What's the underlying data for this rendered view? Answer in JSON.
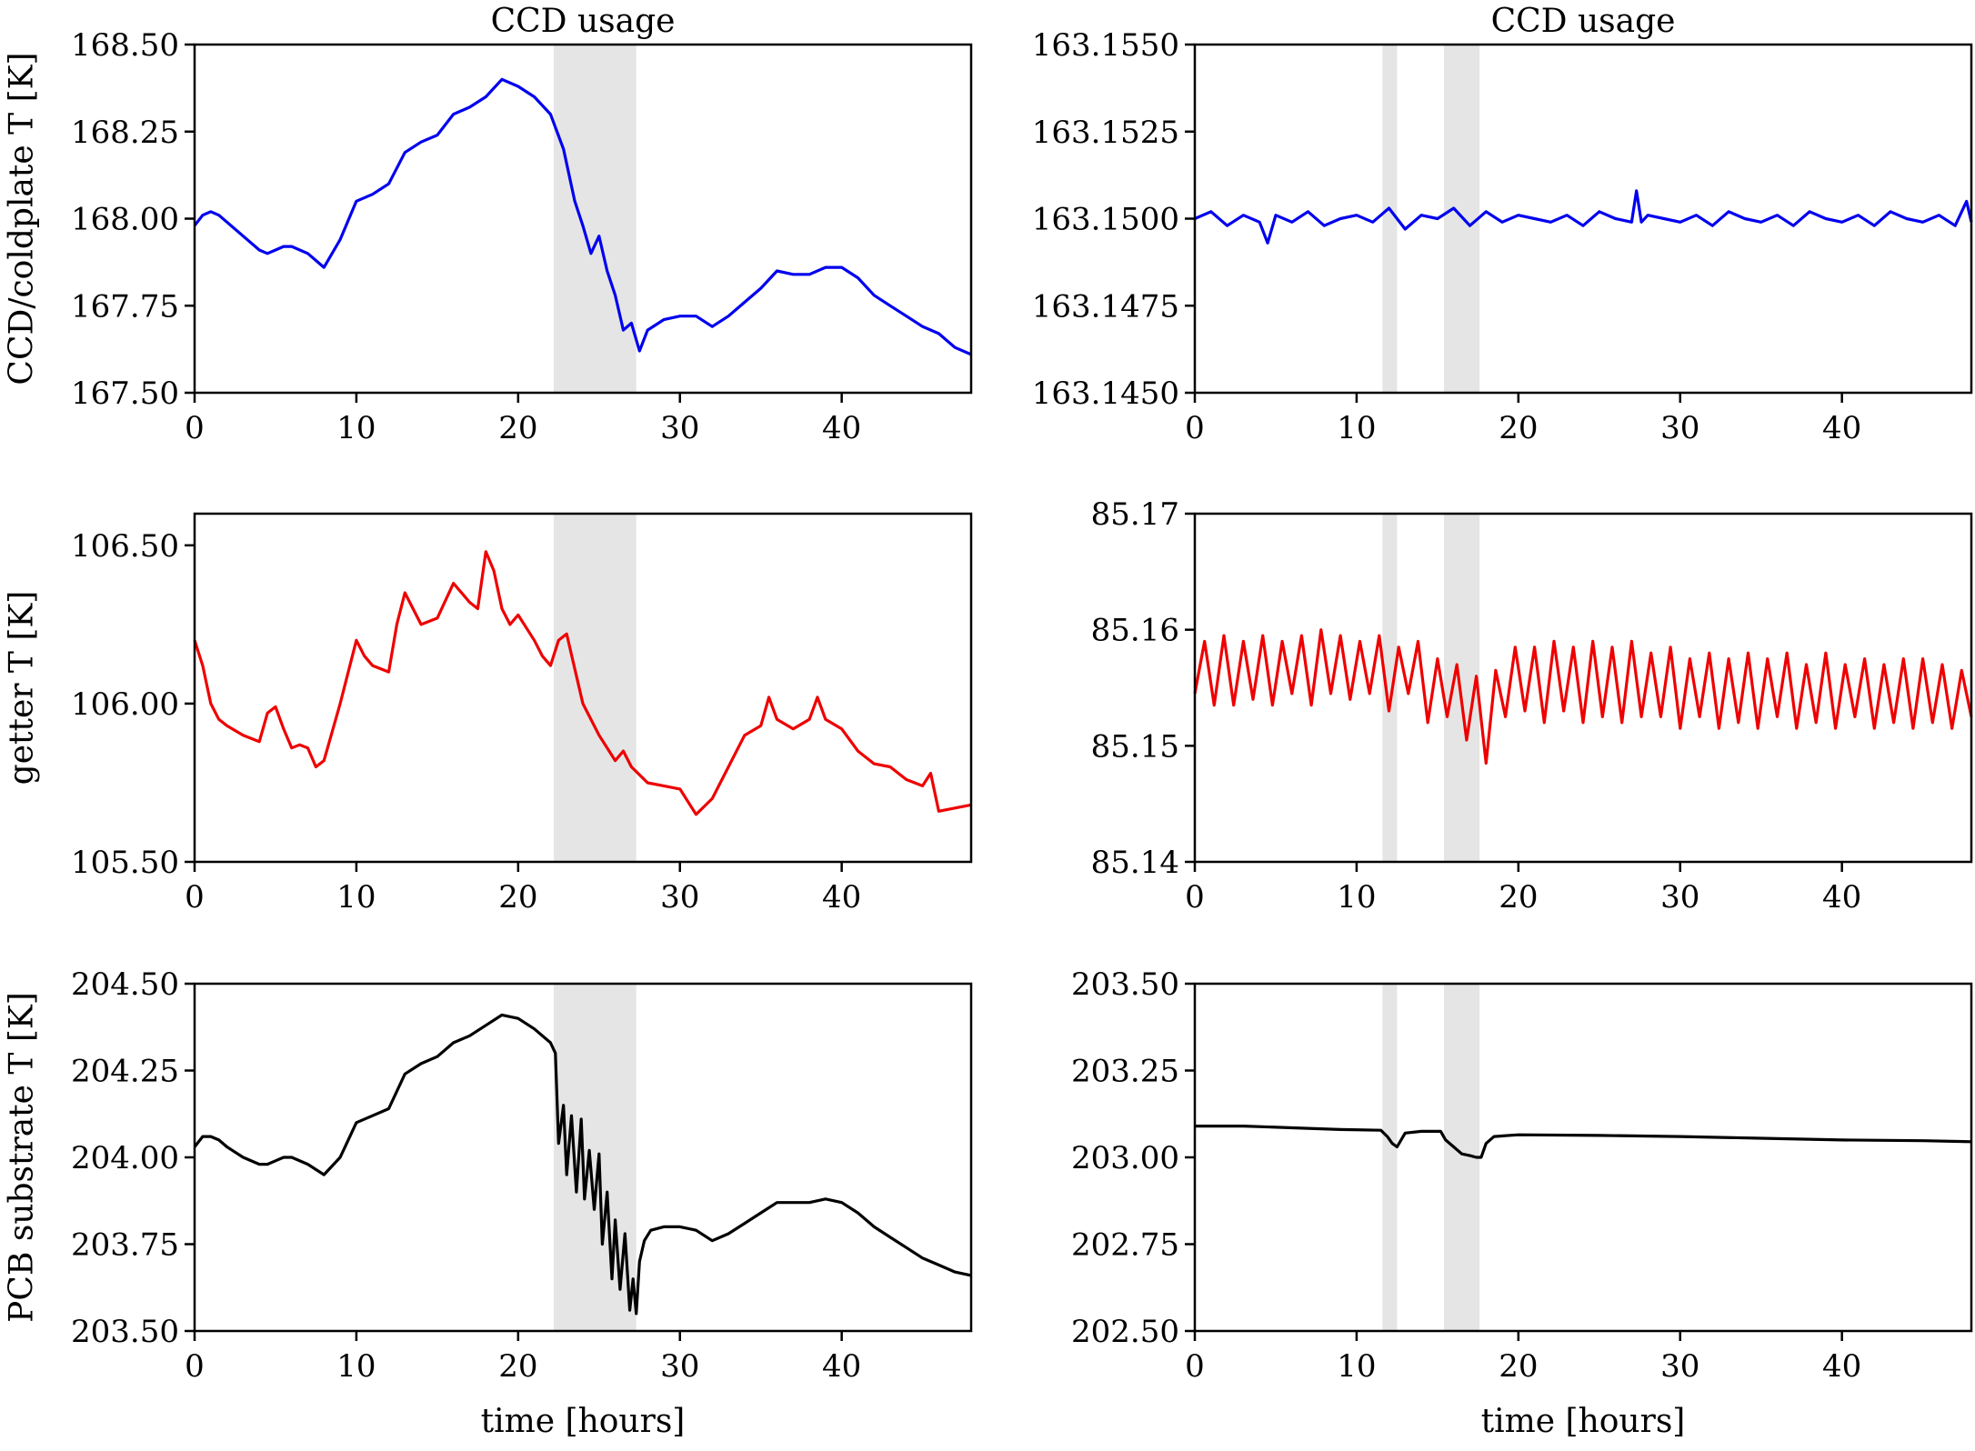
{
  "chart_data": [
    {
      "type": "line",
      "panel": "row1-left",
      "title": "CCD usage",
      "xlabel": "",
      "ylabel": "CCD/coldplate T [K]",
      "xlim": [
        0,
        48
      ],
      "ylim": [
        167.5,
        168.5
      ],
      "xticks": [
        0,
        10,
        20,
        30,
        40
      ],
      "xtick_labels": [
        "0",
        "10",
        "20",
        "30",
        "40"
      ],
      "yticks": [
        167.5,
        167.75,
        168.0,
        168.25,
        168.5
      ],
      "ytick_labels": [
        "167.50",
        "167.75",
        "168.00",
        "168.25",
        "168.50"
      ],
      "shaded_spans": [
        [
          22.2,
          27.3
        ]
      ],
      "series": [
        {
          "name": "CCD/coldplate T",
          "color": "#0000ee",
          "x": [
            0,
            0.5,
            1,
            1.5,
            2,
            3,
            4,
            4.5,
            5,
            5.5,
            6,
            7,
            8,
            9,
            10,
            11,
            12,
            13,
            14,
            15,
            16,
            17,
            18,
            19,
            20,
            21,
            22,
            22.8,
            23.5,
            24,
            24.5,
            25,
            25.5,
            26,
            26.5,
            27,
            27.5,
            28,
            29,
            30,
            31,
            32,
            33,
            34,
            35,
            36,
            37,
            38,
            39,
            40,
            41,
            42,
            43,
            44,
            45,
            46,
            47,
            48
          ],
          "y": [
            167.98,
            168.01,
            168.02,
            168.01,
            167.99,
            167.95,
            167.91,
            167.9,
            167.91,
            167.92,
            167.92,
            167.9,
            167.86,
            167.94,
            168.05,
            168.07,
            168.1,
            168.19,
            168.22,
            168.24,
            168.3,
            168.32,
            168.35,
            168.4,
            168.38,
            168.35,
            168.3,
            168.2,
            168.05,
            167.98,
            167.9,
            167.95,
            167.85,
            167.78,
            167.68,
            167.7,
            167.62,
            167.68,
            167.71,
            167.72,
            167.72,
            167.69,
            167.72,
            167.76,
            167.8,
            167.85,
            167.84,
            167.84,
            167.86,
            167.86,
            167.83,
            167.78,
            167.75,
            167.72,
            167.69,
            167.67,
            167.63,
            167.61
          ]
        }
      ]
    },
    {
      "type": "line",
      "panel": "row1-right",
      "title": "CCD usage",
      "xlabel": "",
      "ylabel": "",
      "xlim": [
        0,
        48
      ],
      "ylim": [
        163.145,
        163.155
      ],
      "xticks": [
        0,
        10,
        20,
        30,
        40
      ],
      "xtick_labels": [
        "0",
        "10",
        "20",
        "30",
        "40"
      ],
      "yticks": [
        163.145,
        163.1475,
        163.15,
        163.1525,
        163.155
      ],
      "ytick_labels": [
        "163.1450",
        "163.1475",
        "163.1500",
        "163.1525",
        "163.1550"
      ],
      "shaded_spans": [
        [
          11.6,
          12.5
        ],
        [
          15.4,
          17.6
        ]
      ],
      "series": [
        {
          "name": "CCD/coldplate T",
          "color": "#0000ee",
          "x": [
            0,
            1,
            2,
            3,
            4,
            4.5,
            5,
            6,
            7,
            8,
            9,
            10,
            11,
            12,
            13,
            14,
            15,
            16,
            17,
            18,
            19,
            20,
            21,
            22,
            23,
            24,
            25,
            26,
            27,
            27.3,
            27.6,
            28,
            29,
            30,
            31,
            32,
            33,
            34,
            35,
            36,
            37,
            38,
            39,
            40,
            41,
            42,
            43,
            44,
            45,
            46,
            47,
            47.7,
            48
          ],
          "y": [
            163.15,
            163.1502,
            163.1498,
            163.1501,
            163.1499,
            163.1493,
            163.1501,
            163.1499,
            163.1502,
            163.1498,
            163.15,
            163.1501,
            163.1499,
            163.1503,
            163.1497,
            163.1501,
            163.15,
            163.1503,
            163.1498,
            163.1502,
            163.1499,
            163.1501,
            163.15,
            163.1499,
            163.1501,
            163.1498,
            163.1502,
            163.15,
            163.1499,
            163.1508,
            163.1499,
            163.1501,
            163.15,
            163.1499,
            163.1501,
            163.1498,
            163.1502,
            163.15,
            163.1499,
            163.1501,
            163.1498,
            163.1502,
            163.15,
            163.1499,
            163.1501,
            163.1498,
            163.1502,
            163.15,
            163.1499,
            163.1501,
            163.1498,
            163.1505,
            163.1499
          ]
        }
      ]
    },
    {
      "type": "line",
      "panel": "row2-left",
      "title": "",
      "xlabel": "",
      "ylabel": "getter T [K]",
      "xlim": [
        0,
        48
      ],
      "ylim": [
        105.5,
        106.6
      ],
      "xticks": [
        0,
        10,
        20,
        30,
        40
      ],
      "xtick_labels": [
        "0",
        "10",
        "20",
        "30",
        "40"
      ],
      "yticks": [
        105.5,
        106.0,
        106.5
      ],
      "ytick_labels": [
        "105.50",
        "106.00",
        "106.50"
      ],
      "shaded_spans": [
        [
          22.2,
          27.3
        ]
      ],
      "series": [
        {
          "name": "getter T",
          "color": "#ee0000",
          "x": [
            0,
            0.5,
            1,
            1.5,
            2,
            3,
            4,
            4.5,
            5,
            5.5,
            6,
            6.5,
            7,
            7.5,
            8,
            9,
            10,
            10.5,
            11,
            12,
            12.5,
            13,
            13.5,
            14,
            15,
            16,
            17,
            17.5,
            18,
            18.5,
            19,
            19.5,
            20,
            21,
            21.5,
            22,
            22.5,
            23,
            24,
            25,
            26,
            26.5,
            27,
            28,
            29,
            30,
            31,
            32,
            33,
            34,
            35,
            35.5,
            36,
            37,
            38,
            38.5,
            39,
            40,
            41,
            42,
            43,
            44,
            45,
            45.5,
            46,
            47,
            48
          ],
          "y": [
            106.2,
            106.12,
            106.0,
            105.95,
            105.93,
            105.9,
            105.88,
            105.97,
            105.99,
            105.92,
            105.86,
            105.87,
            105.86,
            105.8,
            105.82,
            106.0,
            106.2,
            106.15,
            106.12,
            106.1,
            106.25,
            106.35,
            106.3,
            106.25,
            106.27,
            106.38,
            106.32,
            106.3,
            106.48,
            106.42,
            106.3,
            106.25,
            106.28,
            106.2,
            106.15,
            106.12,
            106.2,
            106.22,
            106.0,
            105.9,
            105.82,
            105.85,
            105.8,
            105.75,
            105.74,
            105.73,
            105.65,
            105.7,
            105.8,
            105.9,
            105.93,
            106.02,
            105.95,
            105.92,
            105.95,
            106.02,
            105.95,
            105.92,
            105.85,
            105.81,
            105.8,
            105.76,
            105.74,
            105.78,
            105.66,
            105.67,
            105.68
          ]
        }
      ]
    },
    {
      "type": "line",
      "panel": "row2-right",
      "title": "",
      "xlabel": "",
      "ylabel": "",
      "xlim": [
        0,
        48
      ],
      "ylim": [
        85.14,
        85.17
      ],
      "xticks": [
        0,
        10,
        20,
        30,
        40
      ],
      "xtick_labels": [
        "0",
        "10",
        "20",
        "30",
        "40"
      ],
      "yticks": [
        85.14,
        85.15,
        85.16,
        85.17
      ],
      "ytick_labels": [
        "85.14",
        "85.15",
        "85.16",
        "85.17"
      ],
      "shaded_spans": [
        [
          11.6,
          12.5
        ],
        [
          15.4,
          17.6
        ]
      ],
      "series": [
        {
          "name": "getter T",
          "color": "#ee0000",
          "x": [
            0,
            0.6,
            1.2,
            1.8,
            2.4,
            3,
            3.6,
            4.2,
            4.8,
            5.4,
            6,
            6.6,
            7.2,
            7.8,
            8.4,
            9,
            9.6,
            10.2,
            10.8,
            11.4,
            12,
            12.6,
            13.2,
            13.8,
            14.4,
            15,
            15.6,
            16.2,
            16.8,
            17.4,
            18,
            18.6,
            19.2,
            19.8,
            20.4,
            21,
            21.6,
            22.2,
            22.8,
            23.4,
            24,
            24.6,
            25.2,
            25.8,
            26.4,
            27,
            27.6,
            28.2,
            28.8,
            29.4,
            30,
            30.6,
            31.2,
            31.8,
            32.4,
            33,
            33.6,
            34.2,
            34.8,
            35.4,
            36,
            36.6,
            37.2,
            37.8,
            38.4,
            39,
            39.6,
            40.2,
            40.8,
            41.4,
            42,
            42.6,
            43.2,
            43.8,
            44.4,
            45,
            45.6,
            46.2,
            46.8,
            47.4,
            48
          ],
          "y": [
            85.1545,
            85.159,
            85.1535,
            85.1595,
            85.1535,
            85.159,
            85.154,
            85.1595,
            85.1535,
            85.159,
            85.1545,
            85.1595,
            85.1535,
            85.16,
            85.1545,
            85.1595,
            85.154,
            85.159,
            85.1545,
            85.1595,
            85.153,
            85.1585,
            85.1545,
            85.159,
            85.152,
            85.1575,
            85.1525,
            85.157,
            85.1505,
            85.156,
            85.1485,
            85.1565,
            85.1525,
            85.1585,
            85.153,
            85.1585,
            85.152,
            85.159,
            85.153,
            85.1585,
            85.152,
            85.159,
            85.1525,
            85.1585,
            85.152,
            85.159,
            85.1525,
            85.158,
            85.1525,
            85.1585,
            85.1515,
            85.1575,
            85.1525,
            85.158,
            85.1515,
            85.1575,
            85.152,
            85.158,
            85.1515,
            85.1575,
            85.1525,
            85.158,
            85.1515,
            85.157,
            85.152,
            85.158,
            85.1515,
            85.157,
            85.1525,
            85.1575,
            85.1515,
            85.157,
            85.152,
            85.1575,
            85.1515,
            85.1575,
            85.152,
            85.157,
            85.1515,
            85.1565,
            85.1525
          ]
        }
      ]
    },
    {
      "type": "line",
      "panel": "row3-left",
      "title": "",
      "xlabel": "time [hours]",
      "ylabel": "PCB substrate T [K]",
      "xlim": [
        0,
        48
      ],
      "ylim": [
        203.5,
        204.5
      ],
      "xticks": [
        0,
        10,
        20,
        30,
        40
      ],
      "xtick_labels": [
        "0",
        "10",
        "20",
        "30",
        "40"
      ],
      "yticks": [
        203.5,
        203.75,
        204.0,
        204.25,
        204.5
      ],
      "ytick_labels": [
        "203.50",
        "203.75",
        "204.00",
        "204.25",
        "204.50"
      ],
      "shaded_spans": [
        [
          22.2,
          27.3
        ]
      ],
      "series": [
        {
          "name": "PCB substrate T",
          "color": "#000000",
          "x": [
            0,
            0.5,
            1,
            1.5,
            2,
            3,
            4,
            4.5,
            5,
            5.5,
            6,
            7,
            8,
            9,
            10,
            11,
            12,
            13,
            14,
            15,
            16,
            17,
            18,
            19,
            20,
            21,
            22,
            22.3,
            22.5,
            22.8,
            23,
            23.3,
            23.6,
            23.9,
            24.1,
            24.4,
            24.7,
            25,
            25.2,
            25.5,
            25.8,
            26,
            26.3,
            26.6,
            26.9,
            27.1,
            27.3,
            27.5,
            27.8,
            28.2,
            29,
            30,
            31,
            32,
            33,
            34,
            35,
            36,
            37,
            38,
            39,
            40,
            41,
            42,
            43,
            44,
            45,
            46,
            47,
            48
          ],
          "y": [
            204.03,
            204.06,
            204.06,
            204.05,
            204.03,
            204.0,
            203.98,
            203.98,
            203.99,
            204.0,
            204.0,
            203.98,
            203.95,
            204.0,
            204.1,
            204.12,
            204.14,
            204.24,
            204.27,
            204.29,
            204.33,
            204.35,
            204.38,
            204.41,
            204.4,
            204.37,
            204.33,
            204.3,
            204.04,
            204.15,
            203.95,
            204.12,
            203.9,
            204.11,
            203.88,
            204.02,
            203.85,
            204.01,
            203.75,
            203.9,
            203.65,
            203.82,
            203.62,
            203.78,
            203.56,
            203.65,
            203.55,
            203.7,
            203.76,
            203.79,
            203.8,
            203.8,
            203.79,
            203.76,
            203.78,
            203.81,
            203.84,
            203.87,
            203.87,
            203.87,
            203.88,
            203.87,
            203.84,
            203.8,
            203.77,
            203.74,
            203.71,
            203.69,
            203.67,
            203.66
          ]
        }
      ]
    },
    {
      "type": "line",
      "panel": "row3-right",
      "title": "",
      "xlabel": "time [hours]",
      "ylabel": "",
      "xlim": [
        0,
        48
      ],
      "ylim": [
        202.5,
        203.5
      ],
      "xticks": [
        0,
        10,
        20,
        30,
        40
      ],
      "xtick_labels": [
        "0",
        "10",
        "20",
        "30",
        "40"
      ],
      "yticks": [
        202.5,
        202.75,
        203.0,
        203.25,
        203.5
      ],
      "ytick_labels": [
        "202.50",
        "202.75",
        "203.00",
        "203.25",
        "203.50"
      ],
      "shaded_spans": [
        [
          11.6,
          12.5
        ],
        [
          15.4,
          17.6
        ]
      ],
      "series": [
        {
          "name": "PCB substrate T",
          "color": "#000000",
          "x": [
            0,
            3,
            6,
            9,
            11.5,
            11.9,
            12.2,
            12.5,
            13,
            14,
            15.2,
            15.5,
            16,
            16.5,
            17,
            17.4,
            17.7,
            18,
            18.5,
            20,
            25,
            30,
            35,
            40,
            45,
            48
          ],
          "y": [
            203.09,
            203.09,
            203.085,
            203.08,
            203.078,
            203.06,
            203.04,
            203.03,
            203.07,
            203.075,
            203.075,
            203.05,
            203.03,
            203.01,
            203.005,
            203.0,
            203.0,
            203.04,
            203.06,
            203.065,
            203.063,
            203.06,
            203.055,
            203.05,
            203.048,
            203.045
          ]
        }
      ]
    }
  ]
}
